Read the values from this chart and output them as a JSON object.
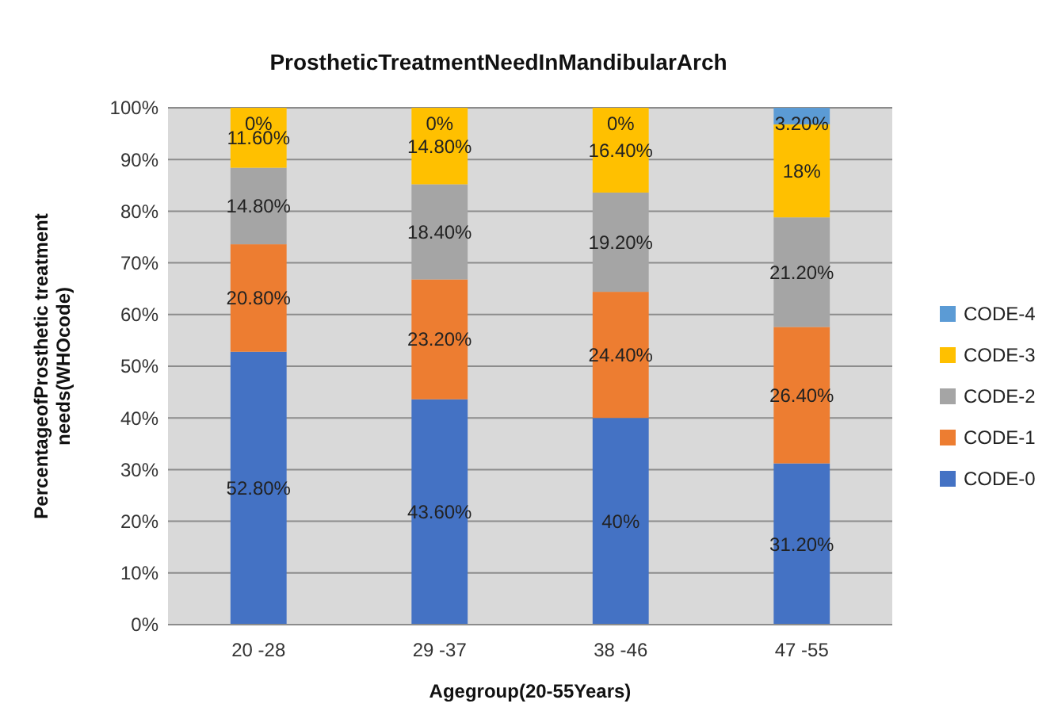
{
  "chart_data": {
    "type": "bar",
    "title": "ProstheticTreatmentNeedInMandibularArch",
    "xlabel": "Agegroup(20-55Years)",
    "ylabel": "PercentageofProsthetic treatment needs(WHOcode)",
    "categories": [
      "20 -28",
      "29 -37",
      "38 -46",
      "47 -55"
    ],
    "stacked": true,
    "ylim": [
      0,
      100
    ],
    "yticks": [
      {
        "value": 0,
        "label": "0%"
      },
      {
        "value": 10,
        "label": "10%"
      },
      {
        "value": 20,
        "label": "20%"
      },
      {
        "value": 30,
        "label": "30%"
      },
      {
        "value": 40,
        "label": "40%"
      },
      {
        "value": 50,
        "label": "50%"
      },
      {
        "value": 60,
        "label": "60%"
      },
      {
        "value": 70,
        "label": "70%"
      },
      {
        "value": 80,
        "label": "80%"
      },
      {
        "value": 90,
        "label": "90%"
      },
      {
        "value": 100,
        "label": "100%"
      }
    ],
    "grid": "y",
    "legend": "right",
    "series": [
      {
        "name": "CODE-0",
        "color": "#4472c4",
        "values": [
          52.8,
          43.6,
          40,
          31.2
        ],
        "value_labels": [
          "52.80%",
          "43.60%",
          "40%",
          "31.20%"
        ]
      },
      {
        "name": "CODE-1",
        "color": "#ed7d31",
        "values": [
          20.8,
          23.2,
          24.4,
          26.4
        ],
        "value_labels": [
          "20.80%",
          "23.20%",
          "24.40%",
          "26.40%"
        ]
      },
      {
        "name": "CODE-2",
        "color": "#a5a5a5",
        "values": [
          14.8,
          18.4,
          19.2,
          21.2
        ],
        "value_labels": [
          "14.80%",
          "18.40%",
          "19.20%",
          "21.20%"
        ]
      },
      {
        "name": "CODE-3",
        "color": "#ffc000",
        "values": [
          11.6,
          14.8,
          16.4,
          18
        ],
        "value_labels": [
          "11.60%",
          "14.80%",
          "16.40%",
          "18%"
        ]
      },
      {
        "name": "CODE-4",
        "color": "#5b9bd5",
        "values": [
          0,
          0,
          0,
          3.2
        ],
        "value_labels": [
          "0%",
          "0%",
          "0%",
          "3.20%"
        ]
      }
    ]
  }
}
